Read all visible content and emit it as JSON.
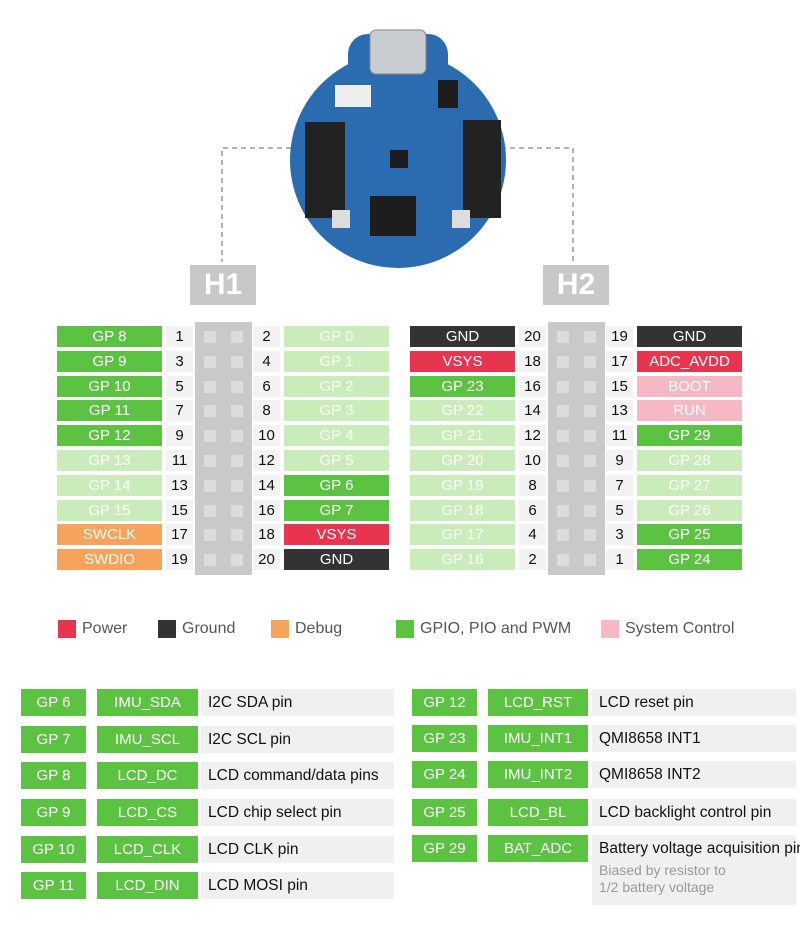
{
  "headers": [
    {
      "name": "H1",
      "rows": [
        {
          "left": {
            "label": "GP 8",
            "pin": 1,
            "kind": "gpio"
          },
          "right": {
            "label": "GP 0",
            "pin": 2,
            "kind": "gpio-dim"
          }
        },
        {
          "left": {
            "label": "GP 9",
            "pin": 3,
            "kind": "gpio"
          },
          "right": {
            "label": "GP 1",
            "pin": 4,
            "kind": "gpio-dim"
          }
        },
        {
          "left": {
            "label": "GP 10",
            "pin": 5,
            "kind": "gpio"
          },
          "right": {
            "label": "GP 2",
            "pin": 6,
            "kind": "gpio-dim"
          }
        },
        {
          "left": {
            "label": "GP 11",
            "pin": 7,
            "kind": "gpio"
          },
          "right": {
            "label": "GP 3",
            "pin": 8,
            "kind": "gpio-dim"
          }
        },
        {
          "left": {
            "label": "GP 12",
            "pin": 9,
            "kind": "gpio"
          },
          "right": {
            "label": "GP 4",
            "pin": 10,
            "kind": "gpio-dim"
          }
        },
        {
          "left": {
            "label": "GP 13",
            "pin": 11,
            "kind": "gpio-dim"
          },
          "right": {
            "label": "GP 5",
            "pin": 12,
            "kind": "gpio-dim"
          }
        },
        {
          "left": {
            "label": "GP 14",
            "pin": 13,
            "kind": "gpio-dim"
          },
          "right": {
            "label": "GP 6",
            "pin": 14,
            "kind": "gpio"
          }
        },
        {
          "left": {
            "label": "GP 15",
            "pin": 15,
            "kind": "gpio-dim"
          },
          "right": {
            "label": "GP 7",
            "pin": 16,
            "kind": "gpio"
          }
        },
        {
          "left": {
            "label": "SWCLK",
            "pin": 17,
            "kind": "debug"
          },
          "right": {
            "label": "VSYS",
            "pin": 18,
            "kind": "power"
          }
        },
        {
          "left": {
            "label": "SWDIO",
            "pin": 19,
            "kind": "debug"
          },
          "right": {
            "label": "GND",
            "pin": 20,
            "kind": "ground"
          }
        }
      ]
    },
    {
      "name": "H2",
      "rows": [
        {
          "left": {
            "label": "GND",
            "pin": 20,
            "kind": "ground"
          },
          "right": {
            "label": "GND",
            "pin": 19,
            "kind": "ground"
          }
        },
        {
          "left": {
            "label": "VSYS",
            "pin": 18,
            "kind": "power"
          },
          "right": {
            "label": "ADC_AVDD",
            "pin": 17,
            "kind": "power"
          }
        },
        {
          "left": {
            "label": "GP 23",
            "pin": 16,
            "kind": "gpio"
          },
          "right": {
            "label": "BOOT",
            "pin": 15,
            "kind": "system"
          }
        },
        {
          "left": {
            "label": "GP 22",
            "pin": 14,
            "kind": "gpio-dim"
          },
          "right": {
            "label": "RUN",
            "pin": 13,
            "kind": "system"
          }
        },
        {
          "left": {
            "label": "GP 21",
            "pin": 12,
            "kind": "gpio-dim"
          },
          "right": {
            "label": "GP 29",
            "pin": 11,
            "kind": "gpio"
          }
        },
        {
          "left": {
            "label": "GP 20",
            "pin": 10,
            "kind": "gpio-dim"
          },
          "right": {
            "label": "GP 28",
            "pin": 9,
            "kind": "gpio-dim"
          }
        },
        {
          "left": {
            "label": "GP 19",
            "pin": 8,
            "kind": "gpio-dim"
          },
          "right": {
            "label": "GP 27",
            "pin": 7,
            "kind": "gpio-dim"
          }
        },
        {
          "left": {
            "label": "GP 18",
            "pin": 6,
            "kind": "gpio-dim"
          },
          "right": {
            "label": "GP 26",
            "pin": 5,
            "kind": "gpio-dim"
          }
        },
        {
          "left": {
            "label": "GP 17",
            "pin": 4,
            "kind": "gpio-dim"
          },
          "right": {
            "label": "GP 25",
            "pin": 3,
            "kind": "gpio"
          }
        },
        {
          "left": {
            "label": "GP 16",
            "pin": 2,
            "kind": "gpio-dim"
          },
          "right": {
            "label": "GP 24",
            "pin": 1,
            "kind": "gpio"
          }
        }
      ]
    }
  ],
  "kinds": {
    "gpio": {
      "bg": "#5cc241",
      "fg": "#ffffff"
    },
    "gpio-dim": {
      "bg": "#c9ecba",
      "fg": "#ffffff"
    },
    "power": {
      "bg": "#e8344e",
      "fg": "#ffffff"
    },
    "ground": {
      "bg": "#333333",
      "fg": "#ffffff"
    },
    "debug": {
      "bg": "#f7a35c",
      "fg": "#ffffff"
    },
    "system": {
      "bg": "#f6b8c5",
      "fg": "#ffffff"
    }
  },
  "legend": [
    {
      "label": "Power",
      "kind": "power"
    },
    {
      "label": "Ground",
      "kind": "ground"
    },
    {
      "label": "Debug",
      "kind": "debug"
    },
    {
      "label": "GPIO, PIO and PWM",
      "kind": "gpio"
    },
    {
      "label": "System Control",
      "kind": "system"
    }
  ],
  "functions": {
    "left": [
      {
        "gpio": "GP 6",
        "name": "IMU_SDA",
        "description": "I2C SDA pin"
      },
      {
        "gpio": "GP 7",
        "name": "IMU_SCL",
        "description": "I2C SCL pin"
      },
      {
        "gpio": "GP 8",
        "name": "LCD_DC",
        "description": "LCD command/data pins"
      },
      {
        "gpio": "GP 9",
        "name": "LCD_CS",
        "description": "LCD chip select pin"
      },
      {
        "gpio": "GP 10",
        "name": "LCD_CLK",
        "description": "LCD CLK pin"
      },
      {
        "gpio": "GP 11",
        "name": "LCD_DIN",
        "description": "LCD MOSI pin"
      }
    ],
    "right": [
      {
        "gpio": "GP 12",
        "name": "LCD_RST",
        "description": "LCD reset pin"
      },
      {
        "gpio": "GP 23",
        "name": "IMU_INT1",
        "description": "QMI8658 INT1"
      },
      {
        "gpio": "GP 24",
        "name": "IMU_INT2",
        "description": "QMI8658 INT2"
      },
      {
        "gpio": "GP 25",
        "name": "LCD_BL",
        "description": "LCD backlight control pin"
      },
      {
        "gpio": "GP 29",
        "name": "BAT_ADC",
        "description": "Battery voltage acquisition pin",
        "note": [
          "Biased by resistor to",
          "1/2 battery voltage"
        ]
      }
    ]
  }
}
